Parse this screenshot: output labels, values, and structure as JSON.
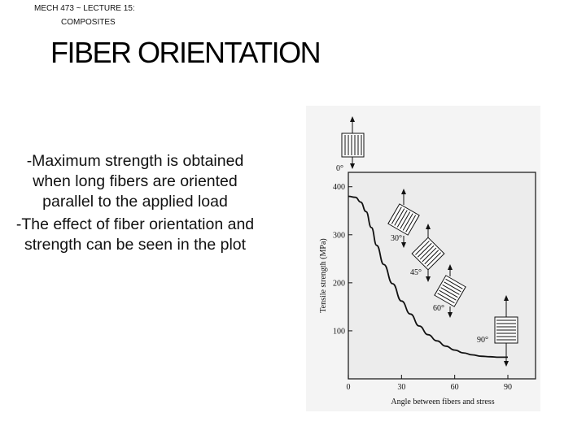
{
  "header": {
    "line1": "MECH 473 ~ LECTURE 15:",
    "line2": "COMPOSITES"
  },
  "title": "FIBER ORIENTATION",
  "bullets": [
    "-Maximum strength is obtained when long fibers are oriented parallel to the applied load",
    "-The effect of fiber orientation and strength can be seen in the plot"
  ],
  "chart_data": {
    "type": "line",
    "xlabel": "Angle between fibers and stress",
    "ylabel": "Tensile strength (MPa)",
    "xlim": [
      0,
      90
    ],
    "ylim": [
      0,
      430
    ],
    "x_ticks": [
      "0",
      "30",
      "60",
      "90"
    ],
    "y_ticks": [
      "100",
      "200",
      "300",
      "400"
    ],
    "annotations": [
      "0°",
      "30°",
      "45°",
      "60°",
      "90°"
    ],
    "series": [
      {
        "x": [
          0,
          4,
          7,
          10,
          13,
          16,
          20,
          25,
          30,
          35,
          40,
          45,
          50,
          55,
          60,
          65,
          70,
          75,
          80,
          85,
          90
        ],
        "values": [
          380,
          378,
          368,
          348,
          315,
          278,
          238,
          198,
          162,
          135,
          110,
          92,
          79,
          68,
          60,
          54,
          50,
          47,
          46,
          45,
          45
        ]
      }
    ]
  }
}
